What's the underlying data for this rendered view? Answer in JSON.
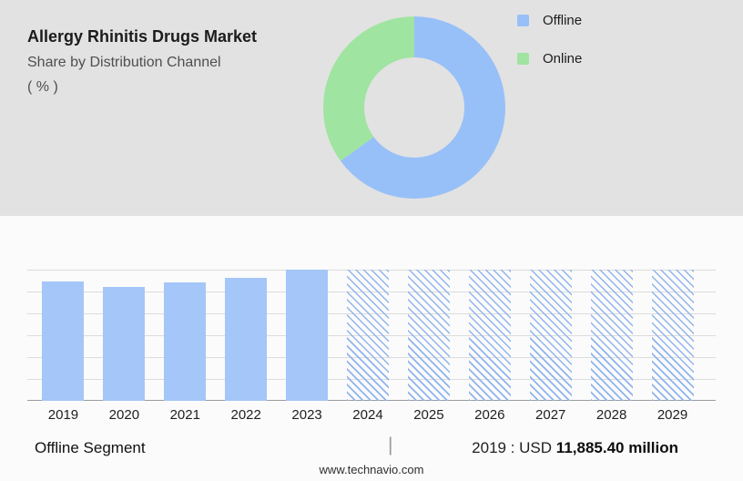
{
  "header": {
    "title": "Allergy Rhinitis Drugs Market",
    "subtitle": "Share by Distribution Channel",
    "unit_label": "( % )"
  },
  "colors": {
    "offline_blue": "#97c0f8",
    "online_green": "#9fe4a0",
    "bar_blue": "#a4c6f8",
    "hatch_blue": "#8fb4ee",
    "top_panel_gray": "#e2e2e2",
    "gridline_gray": "#dcdcdc",
    "axis_gray": "#9b9b9b"
  },
  "chart_data": [
    {
      "type": "pie",
      "subtype": "donut",
      "title": "Share by Distribution Channel ( % )",
      "legend_position": "right",
      "slices": [
        {
          "label": "Offline",
          "value": 65,
          "color": "#97c0f8"
        },
        {
          "label": "Online",
          "value": 35,
          "color": "#9fe4a0"
        }
      ]
    },
    {
      "type": "bar",
      "title": "Market size by year (2019-2023 actual solid, 2024-2029 forecast hatched)",
      "categories": [
        "2019",
        "2020",
        "2021",
        "2022",
        "2023",
        "2024",
        "2025",
        "2026",
        "2027",
        "2028",
        "2029"
      ],
      "values": [
        91,
        87,
        90,
        94,
        100,
        100,
        100,
        100,
        100,
        100,
        100
      ],
      "bar_styles": [
        "solid",
        "solid",
        "solid",
        "solid",
        "solid",
        "hatched",
        "hatched",
        "hatched",
        "hatched",
        "hatched",
        "hatched"
      ],
      "units": "relative bar height % (y-axis unlabeled in source)",
      "known_points": {
        "2019": "USD 11,885.40 million"
      },
      "bar_color": "#a4c6f8",
      "xlabel": "",
      "ylabel": "",
      "ylim": [
        0,
        100
      ],
      "grid": true,
      "legend_position": "none"
    }
  ],
  "footer": {
    "segment_label": "Offline Segment",
    "separator": "|",
    "value_prefix": "2019 : USD",
    "value_bold": "11,885.40 million",
    "website": "www.technavio.com"
  }
}
